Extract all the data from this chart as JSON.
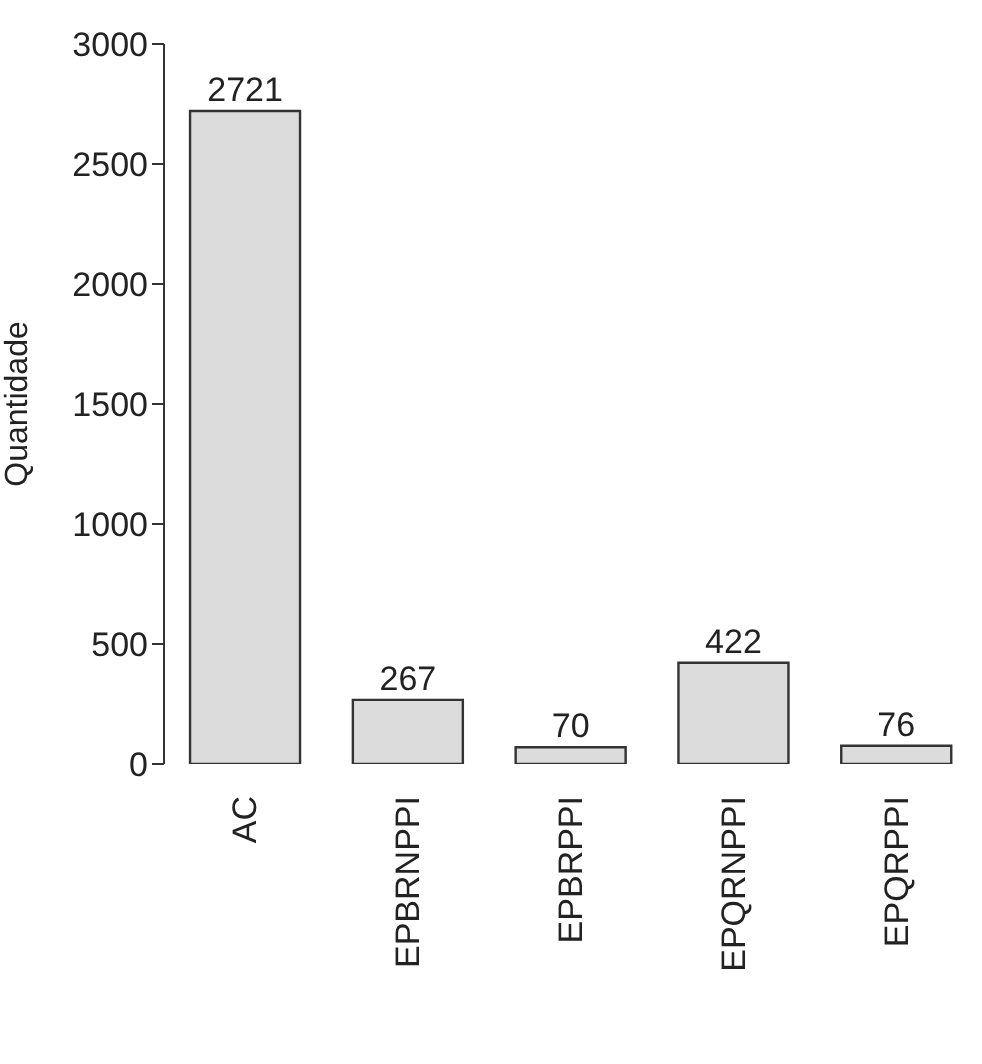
{
  "chart_data": {
    "type": "bar",
    "ylabel": "Quantidade",
    "categories": [
      "AC",
      "EPBRNPPI",
      "EPBRPPI",
      "EPQRNPPI",
      "EPQRPPI"
    ],
    "values": [
      2721,
      267,
      70,
      422,
      76
    ],
    "color": "#dcdcdc",
    "ylim": [
      0,
      3000
    ],
    "yticks": [
      0,
      500,
      1000,
      1500,
      2000,
      2500,
      3000
    ],
    "data_labels": true,
    "grid": false,
    "legend": false
  }
}
